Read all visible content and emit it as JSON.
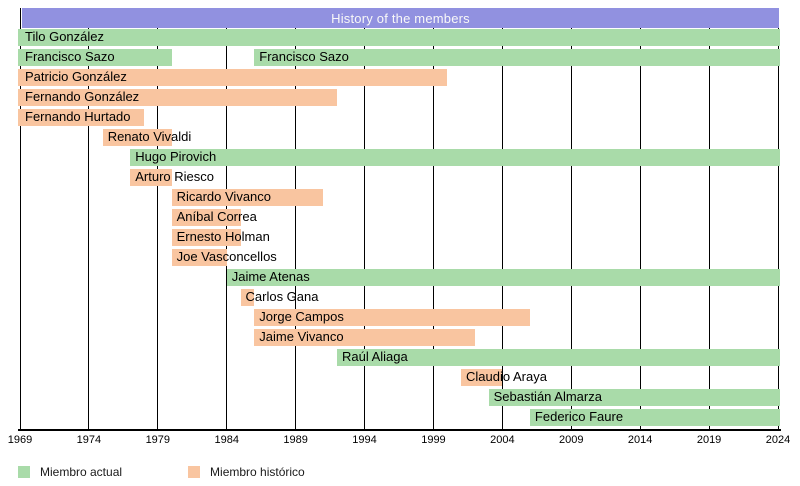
{
  "title": "History of the members",
  "colors": {
    "title_bar": "#9191e0",
    "title_text": "#f8f8f8",
    "member_actual": "#a9dba9",
    "member_historico": "#f9c5a0",
    "gridline": "#000000",
    "axis": "#000000",
    "background": "#ffffff",
    "label_text": "#000000"
  },
  "chart_data": {
    "type": "gantt",
    "title": "History of the members",
    "xlabel": "",
    "ylabel": "",
    "grid": "vertical-lines-on",
    "x_axis": {
      "min": 1969,
      "max": 2024,
      "tick_step": 5,
      "ticks": [
        1969,
        1974,
        1979,
        1984,
        1989,
        1994,
        1999,
        2004,
        2009,
        2014,
        2019,
        2024
      ]
    },
    "legend": {
      "position": "bottom-left",
      "entries": [
        {
          "key": "actual",
          "label": "Miembro actual"
        },
        {
          "key": "historico",
          "label": "Miembro histórico"
        }
      ]
    },
    "members": [
      {
        "name": "Tilo González",
        "status": "actual",
        "periods": [
          {
            "from": 1969,
            "to": 2024
          }
        ]
      },
      {
        "name": "Francisco Sazo",
        "status": "actual",
        "periods": [
          {
            "from": 1969,
            "to": 1980
          },
          {
            "from": 1986,
            "to": 2024
          }
        ]
      },
      {
        "name": "Patricio González",
        "status": "historico",
        "periods": [
          {
            "from": 1969,
            "to": 2000
          }
        ]
      },
      {
        "name": "Fernando González",
        "status": "historico",
        "periods": [
          {
            "from": 1969,
            "to": 1992
          }
        ]
      },
      {
        "name": "Fernando Hurtado",
        "status": "historico",
        "periods": [
          {
            "from": 1969,
            "to": 1978
          }
        ]
      },
      {
        "name": "Renato Vivaldi",
        "status": "historico",
        "periods": [
          {
            "from": 1975,
            "to": 1980
          }
        ]
      },
      {
        "name": "Hugo Pirovich",
        "status": "actual",
        "periods": [
          {
            "from": 1977,
            "to": 2024
          }
        ]
      },
      {
        "name": "Arturo Riesco",
        "status": "historico",
        "periods": [
          {
            "from": 1977,
            "to": 1980
          }
        ]
      },
      {
        "name": "Ricardo Vivanco",
        "status": "historico",
        "periods": [
          {
            "from": 1980,
            "to": 1991
          }
        ]
      },
      {
        "name": "Aníbal Correa",
        "status": "historico",
        "periods": [
          {
            "from": 1980,
            "to": 1985
          }
        ]
      },
      {
        "name": "Ernesto Holman",
        "status": "historico",
        "periods": [
          {
            "from": 1980,
            "to": 1985
          }
        ]
      },
      {
        "name": "Joe Vasconcellos",
        "status": "historico",
        "periods": [
          {
            "from": 1980,
            "to": 1984
          }
        ]
      },
      {
        "name": "Jaime Atenas",
        "status": "actual",
        "periods": [
          {
            "from": 1984,
            "to": 2024
          }
        ]
      },
      {
        "name": "Carlos Gana",
        "status": "historico",
        "periods": [
          {
            "from": 1985,
            "to": 1986
          }
        ]
      },
      {
        "name": "Jorge Campos",
        "status": "historico",
        "periods": [
          {
            "from": 1986,
            "to": 2006
          }
        ]
      },
      {
        "name": "Jaime Vivanco",
        "status": "historico",
        "periods": [
          {
            "from": 1986,
            "to": 2002
          }
        ]
      },
      {
        "name": "Raúl Aliaga",
        "status": "actual",
        "periods": [
          {
            "from": 1992,
            "to": 2024
          }
        ]
      },
      {
        "name": "Claudio Araya",
        "status": "historico",
        "periods": [
          {
            "from": 2001,
            "to": 2004
          }
        ]
      },
      {
        "name": "Sebastián Almarza",
        "status": "actual",
        "periods": [
          {
            "from": 2003,
            "to": 2024
          }
        ]
      },
      {
        "name": "Federico Faure",
        "status": "actual",
        "periods": [
          {
            "from": 2006,
            "to": 2024
          }
        ]
      }
    ]
  }
}
